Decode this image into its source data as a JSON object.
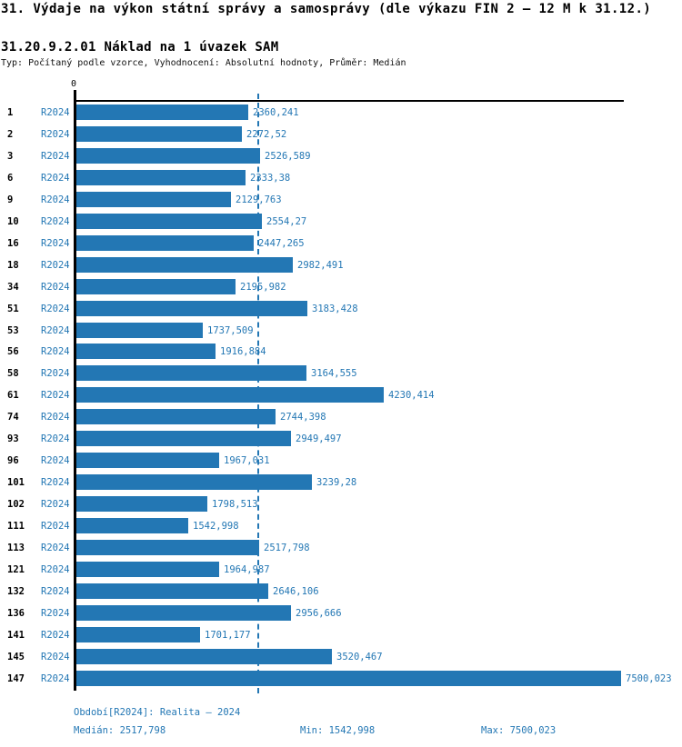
{
  "header": {
    "title": "31. Výdaje na výkon státní správy a samosprávy (dle výkazu FIN 2 – 12 M k 31.12.)",
    "subtitle": "31.20.9.2.01 Náklad na 1 úvazek SAM",
    "meta": "Typ: Počítaný podle vzorce, Vyhodnocení: Absolutní hodnoty, Průměr: Medián"
  },
  "chart_data": {
    "type": "bar",
    "orientation": "horizontal",
    "series_label": "R2024",
    "axis_zero_label": "0",
    "categories": [
      "1",
      "2",
      "3",
      "6",
      "9",
      "10",
      "16",
      "18",
      "34",
      "51",
      "53",
      "56",
      "58",
      "61",
      "74",
      "93",
      "96",
      "101",
      "102",
      "111",
      "113",
      "121",
      "132",
      "136",
      "141",
      "145",
      "147"
    ],
    "values": [
      2360.241,
      2272.52,
      2526.589,
      2333.38,
      2129.763,
      2554.27,
      2447.265,
      2982.491,
      2195.982,
      3183.428,
      1737.509,
      1916.884,
      3164.555,
      4230.414,
      2744.398,
      2949.497,
      1967.031,
      3239.28,
      1798.513,
      1542.998,
      2517.798,
      1964.987,
      2646.106,
      2956.666,
      1701.177,
      3520.467,
      7500.023
    ],
    "value_labels": [
      "2360,241",
      "2272,52",
      "2526,589",
      "2333,38",
      "2129,763",
      "2554,27",
      "2447,265",
      "2982,491",
      "2195,982",
      "3183,428",
      "1737,509",
      "1916,884",
      "3164,555",
      "4230,414",
      "2744,398",
      "2949,497",
      "1967,031",
      "3239,28",
      "1798,513",
      "1542,998",
      "2517,798",
      "1964,987",
      "2646,106",
      "2956,666",
      "1701,177",
      "3520,467",
      "7500,023"
    ],
    "xlim": [
      0,
      7575
    ],
    "median": 2517.798,
    "bar_color": "#2377b4",
    "grid": "median-line-only",
    "legend_position": "none"
  },
  "footer": {
    "period": "Období[R2024]: Realita – 2024",
    "median": "Medián: 2517,798",
    "min": "Min: 1542,998",
    "max": "Max: 7500,023"
  }
}
